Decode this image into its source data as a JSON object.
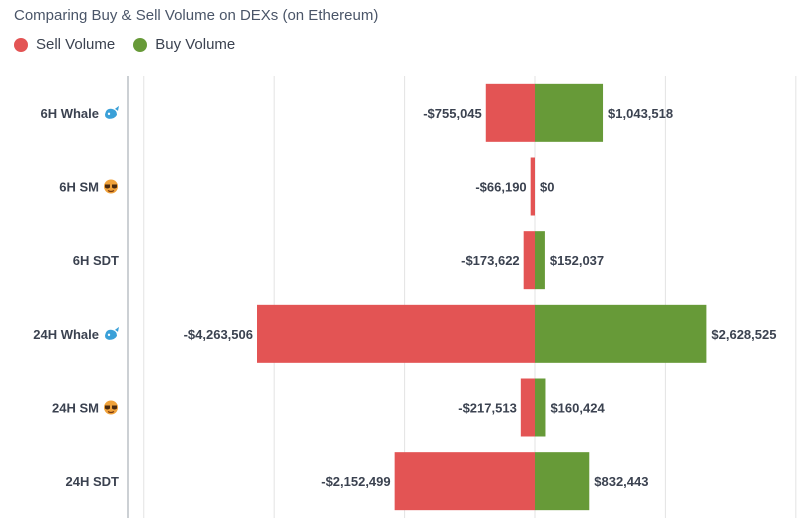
{
  "title": "Comparing Buy & Sell Volume on DEXs (on Ethereum)",
  "legend": {
    "sell_label": "Sell Volume",
    "buy_label": "Buy Volume"
  },
  "colors": {
    "sell": "#e35454",
    "buy": "#679a38",
    "grid": "#e3e3e3",
    "axis": "#9aa0a8",
    "emoji_whale": "#3aa0d8",
    "emoji_sm": "#f0a23a"
  },
  "chart_data": {
    "type": "bar",
    "orientation": "horizontal-diverging",
    "title": "Comparing Buy & Sell Volume on DEXs (on Ethereum)",
    "categories": [
      {
        "label": "6H Whale",
        "icon": "whale-emoji"
      },
      {
        "label": "6H SM",
        "icon": "sunglasses-emoji"
      },
      {
        "label": "6H SDT",
        "icon": ""
      },
      {
        "label": "24H Whale",
        "icon": "whale-emoji"
      },
      {
        "label": "24H SM",
        "icon": "sunglasses-emoji"
      },
      {
        "label": "24H SDT",
        "icon": ""
      }
    ],
    "series": [
      {
        "name": "Sell Volume",
        "values": [
          -755045,
          -66190,
          -173622,
          -4263506,
          -217513,
          -2152499
        ],
        "labels": [
          "-$755,045",
          "-$66,190",
          "-$173,622",
          "-$4,263,506",
          "-$217,513",
          "-$2,152,499"
        ]
      },
      {
        "name": "Buy Volume",
        "values": [
          1043518,
          0,
          152037,
          2628525,
          160424,
          832443
        ],
        "labels": [
          "$1,043,518",
          "$0",
          "$152,037",
          "$2,628,525",
          "$160,424",
          "$832,443"
        ]
      }
    ],
    "xlim": [
      -6000000,
      4000000
    ],
    "grid": true,
    "legend_position": "top-left"
  }
}
